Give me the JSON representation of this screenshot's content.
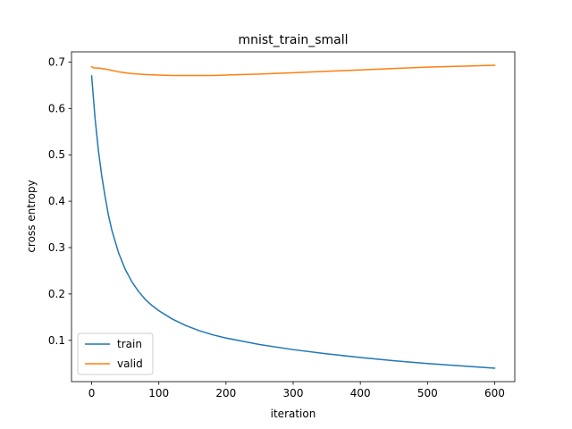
{
  "chart_data": {
    "type": "line",
    "title": "mnist_train_small",
    "xlabel": "iteration",
    "ylabel": "cross entropy",
    "xlim": [
      -30,
      630
    ],
    "ylim": [
      0.011,
      0.722
    ],
    "xticks": [
      0,
      100,
      200,
      300,
      400,
      500,
      600
    ],
    "yticks": [
      0.1,
      0.2,
      0.3,
      0.4,
      0.5,
      0.6,
      0.7
    ],
    "grid": false,
    "legend_position": "lower-left",
    "series": [
      {
        "name": "train",
        "color": "#1f77b4",
        "x": [
          0,
          5,
          10,
          15,
          20,
          25,
          30,
          40,
          50,
          60,
          70,
          80,
          90,
          100,
          120,
          140,
          160,
          180,
          200,
          250,
          300,
          350,
          400,
          450,
          500,
          550,
          600
        ],
        "y": [
          0.67,
          0.58,
          0.51,
          0.455,
          0.41,
          0.37,
          0.338,
          0.289,
          0.253,
          0.226,
          0.205,
          0.188,
          0.175,
          0.164,
          0.146,
          0.132,
          0.121,
          0.112,
          0.105,
          0.091,
          0.08,
          0.071,
          0.063,
          0.056,
          0.05,
          0.045,
          0.04
        ]
      },
      {
        "name": "valid",
        "color": "#ff7f0e",
        "x": [
          0,
          2,
          5,
          10,
          20,
          30,
          40,
          50,
          60,
          80,
          100,
          120,
          140,
          160,
          180,
          200,
          250,
          300,
          350,
          400,
          450,
          500,
          550,
          600
        ],
        "y": [
          0.69,
          0.688,
          0.687,
          0.687,
          0.685,
          0.682,
          0.679,
          0.677,
          0.675,
          0.673,
          0.672,
          0.671,
          0.671,
          0.671,
          0.671,
          0.672,
          0.674,
          0.677,
          0.68,
          0.683,
          0.686,
          0.689,
          0.691,
          0.693
        ]
      }
    ]
  }
}
